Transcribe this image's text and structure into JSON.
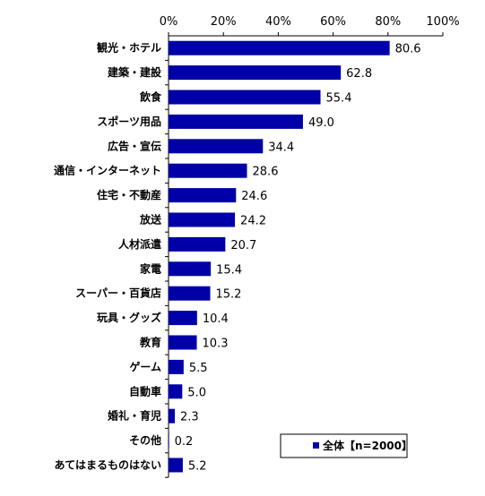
{
  "chart_data": {
    "type": "bar",
    "orientation": "horizontal",
    "categories": [
      "観光・ホテル",
      "建築・建設",
      "飲食",
      "スポーツ用品",
      "広告・宣伝",
      "通信・インターネット",
      "住宅・不動産",
      "放送",
      "人材派遣",
      "家電",
      "スーパー・百貨店",
      "玩具・グッズ",
      "教育",
      "ゲーム",
      "自動車",
      "婚礼・育児",
      "その他",
      "あてはまるものはない"
    ],
    "series": [
      {
        "name": "全体【n=2000】",
        "color": "#0000a8",
        "values": [
          80.6,
          62.8,
          55.4,
          49.0,
          34.4,
          28.6,
          24.6,
          24.2,
          20.7,
          15.4,
          15.2,
          10.4,
          10.3,
          5.5,
          5.0,
          2.3,
          0.2,
          5.2
        ],
        "labels": [
          "80.6",
          "62.8",
          "55.4",
          "49.0",
          "34.4",
          "28.6",
          "24.6",
          "24.2",
          "20.7",
          "15.4",
          "15.2",
          "10.4",
          "10.3",
          "5.5",
          "5.0",
          "2.3",
          "0.2",
          "5.2"
        ]
      }
    ],
    "xlim": [
      0,
      100
    ],
    "x_ticks": [
      "0%",
      "20%",
      "40%",
      "60%",
      "80%",
      "100%"
    ],
    "x_axis_position": "top",
    "grid": false,
    "legend_position": "bottom-right",
    "legend_label": "全体【n=2000】"
  }
}
